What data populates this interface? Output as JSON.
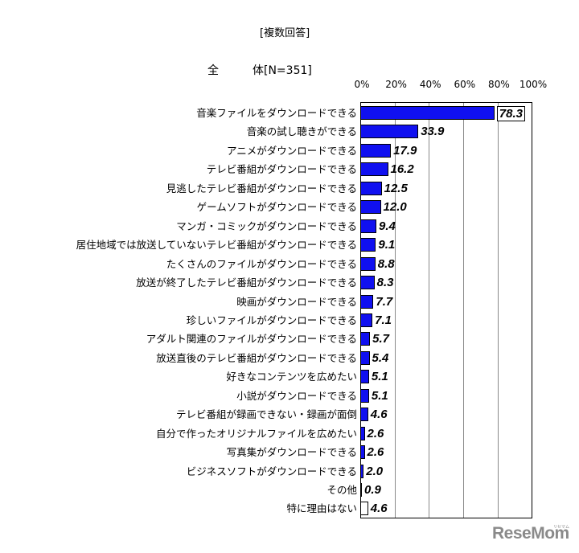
{
  "header": {
    "subtitle": "[複数回答]",
    "group_label_left": "全",
    "group_label_right": "体[N=351]"
  },
  "logo": {
    "text": "ReseMom",
    "kana": "リセマム"
  },
  "chart_data": {
    "type": "bar",
    "orientation": "horizontal",
    "title": "[複数回答]",
    "subtitle": "全体[N=351]",
    "xlabel": "",
    "ylabel": "",
    "xlim": [
      0,
      100
    ],
    "x_ticks": [
      "0%",
      "20%",
      "40%",
      "60%",
      "80%",
      "100%"
    ],
    "grid": true,
    "legend": null,
    "bar_color": "#1010f0",
    "categories": [
      "音楽ファイルをダウンロードできる",
      "音楽の試し聴きができる",
      "アニメがダウンロードできる",
      "テレビ番組がダウンロードできる",
      "見逃したテレビ番組がダウンロードできる",
      "ゲームソフトがダウンロードできる",
      "マンガ・コミックがダウンロードできる",
      "居住地域では放送していないテレビ番組がダウンロードできる",
      "たくさんのファイルがダウンロードできる",
      "放送が終了したテレビ番組がダウンロードできる",
      "映画がダウンロードできる",
      "珍しいファイルがダウンロードできる",
      "アダルト関連のファイルがダウンロードできる",
      "放送直後のテレビ番組がダウンロードできる",
      "好きなコンテンツを広めたい",
      "小説がダウンロードできる",
      "テレビ番組が録画できない・録画が面倒",
      "自分で作ったオリジナルファイルを広めたい",
      "写真集がダウンロードできる",
      "ビジネスソフトがダウンロードできる",
      "その他",
      "特に理由はない"
    ],
    "values": [
      78.3,
      33.9,
      17.9,
      16.2,
      12.5,
      12.0,
      9.4,
      9.1,
      8.8,
      8.3,
      7.7,
      7.1,
      5.7,
      5.4,
      5.1,
      5.1,
      4.6,
      2.6,
      2.6,
      2.0,
      0.9,
      4.6
    ],
    "value_labels": [
      "78.3",
      "33.9",
      "17.9",
      "16.2",
      "12.5",
      "12.0",
      "9.4",
      "9.1",
      "8.8",
      "8.3",
      "7.7",
      "7.1",
      "5.7",
      "5.4",
      "5.1",
      "5.1",
      "4.6",
      "2.6",
      "2.6",
      "2.0",
      "0.9",
      "4.6"
    ],
    "white_bar_categories": [
      "特に理由はない"
    ]
  }
}
